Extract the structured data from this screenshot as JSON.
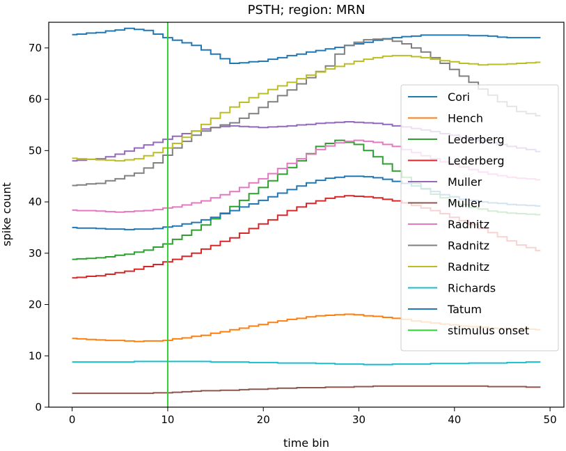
{
  "chart_data": {
    "type": "line",
    "drawstyle": "steps-mid",
    "title": "PSTH; region: MRN",
    "xlabel": "time bin",
    "ylabel": "spike count",
    "xlim": [
      -2.45,
      51.45
    ],
    "ylim": [
      0,
      75
    ],
    "xticks": [
      0,
      10,
      20,
      30,
      40,
      50
    ],
    "yticks": [
      0,
      10,
      20,
      30,
      40,
      50,
      60,
      70
    ],
    "grid": false,
    "legend_position": "center-right",
    "stimulus_onset": 10,
    "series": [
      {
        "name": "Cori",
        "color": "#1f77b4",
        "points": [
          [
            0,
            72.6
          ],
          [
            3,
            73.0
          ],
          [
            6,
            73.8
          ],
          [
            8,
            73.4
          ],
          [
            10,
            72.0
          ],
          [
            13,
            70.5
          ],
          [
            17,
            67.0
          ],
          [
            20,
            67.4
          ],
          [
            23,
            68.5
          ],
          [
            27,
            69.8
          ],
          [
            30,
            70.8
          ],
          [
            33,
            71.8
          ],
          [
            37,
            72.5
          ],
          [
            40,
            72.5
          ],
          [
            43,
            72.4
          ],
          [
            46,
            72.0
          ],
          [
            49,
            72.0
          ]
        ]
      },
      {
        "name": "Hench",
        "color": "#ff7f0e",
        "points": [
          [
            0,
            13.4
          ],
          [
            3,
            13.1
          ],
          [
            7,
            12.8
          ],
          [
            10,
            13.0
          ],
          [
            14,
            14.0
          ],
          [
            18,
            15.4
          ],
          [
            22,
            16.8
          ],
          [
            26,
            17.8
          ],
          [
            29,
            18.1
          ],
          [
            33,
            17.5
          ],
          [
            37,
            16.6
          ],
          [
            41,
            15.8
          ],
          [
            45,
            15.3
          ],
          [
            49,
            15.1
          ]
        ]
      },
      {
        "name": "Lederberg",
        "color": "#2ca02c",
        "points": [
          [
            0,
            28.8
          ],
          [
            3,
            29.1
          ],
          [
            6,
            29.8
          ],
          [
            8,
            30.6
          ],
          [
            10,
            31.8
          ],
          [
            12,
            33.5
          ],
          [
            14,
            35.5
          ],
          [
            16,
            37.8
          ],
          [
            18,
            40.3
          ],
          [
            20,
            42.8
          ],
          [
            22,
            45.4
          ],
          [
            24,
            48.0
          ],
          [
            26,
            50.8
          ],
          [
            28,
            52.0
          ],
          [
            30,
            51.2
          ],
          [
            32,
            48.8
          ],
          [
            34,
            46.0
          ],
          [
            36,
            43.6
          ],
          [
            38,
            41.5
          ],
          [
            40,
            40.0
          ],
          [
            42,
            38.9
          ],
          [
            44,
            38.2
          ],
          [
            46,
            37.8
          ],
          [
            49,
            37.5
          ]
        ]
      },
      {
        "name": "Lederberg",
        "color": "#d62728",
        "points": [
          [
            0,
            25.2
          ],
          [
            3,
            25.6
          ],
          [
            6,
            26.5
          ],
          [
            9,
            27.8
          ],
          [
            11,
            28.8
          ],
          [
            13,
            30.0
          ],
          [
            15,
            31.5
          ],
          [
            17,
            33.0
          ],
          [
            19,
            34.8
          ],
          [
            21,
            36.5
          ],
          [
            23,
            38.3
          ],
          [
            25,
            39.7
          ],
          [
            27,
            40.7
          ],
          [
            29,
            41.2
          ],
          [
            31,
            41.0
          ],
          [
            33,
            40.5
          ],
          [
            35,
            39.8
          ],
          [
            37,
            38.8
          ],
          [
            39,
            37.7
          ],
          [
            41,
            36.3
          ],
          [
            43,
            34.8
          ],
          [
            45,
            33.2
          ],
          [
            47,
            31.6
          ],
          [
            49,
            30.5
          ]
        ]
      },
      {
        "name": "Muller",
        "color": "#9467bd",
        "points": [
          [
            0,
            48.0
          ],
          [
            3,
            48.4
          ],
          [
            5,
            49.3
          ],
          [
            7,
            50.5
          ],
          [
            9,
            51.6
          ],
          [
            11,
            52.8
          ],
          [
            13,
            53.8
          ],
          [
            15,
            54.5
          ],
          [
            17,
            54.8
          ],
          [
            20,
            54.5
          ],
          [
            23,
            54.8
          ],
          [
            26,
            55.3
          ],
          [
            29,
            55.6
          ],
          [
            32,
            55.3
          ],
          [
            35,
            54.6
          ],
          [
            38,
            53.7
          ],
          [
            41,
            52.6
          ],
          [
            44,
            51.5
          ],
          [
            47,
            50.5
          ],
          [
            49,
            49.8
          ]
        ]
      },
      {
        "name": "Muller",
        "color": "#8c564b",
        "points": [
          [
            0,
            2.7
          ],
          [
            8,
            2.7
          ],
          [
            10,
            2.8
          ],
          [
            13,
            3.1
          ],
          [
            17,
            3.3
          ],
          [
            21,
            3.6
          ],
          [
            25,
            3.8
          ],
          [
            29,
            3.9
          ],
          [
            33,
            4.1
          ],
          [
            37,
            4.1
          ],
          [
            41,
            4.1
          ],
          [
            45,
            4.0
          ],
          [
            49,
            3.9
          ]
        ]
      },
      {
        "name": "Radnitz",
        "color": "#e377c2",
        "points": [
          [
            0,
            38.4
          ],
          [
            3,
            38.2
          ],
          [
            5,
            38.0
          ],
          [
            8,
            38.3
          ],
          [
            11,
            39.0
          ],
          [
            14,
            40.2
          ],
          [
            17,
            42.0
          ],
          [
            20,
            44.5
          ],
          [
            23,
            47.5
          ],
          [
            26,
            50.2
          ],
          [
            28,
            51.5
          ],
          [
            30,
            52.0
          ],
          [
            32,
            51.6
          ],
          [
            34,
            50.8
          ],
          [
            36,
            49.6
          ],
          [
            38,
            48.4
          ],
          [
            40,
            47.3
          ],
          [
            42,
            46.3
          ],
          [
            44,
            45.4
          ],
          [
            46,
            44.8
          ],
          [
            49,
            44.3
          ]
        ]
      },
      {
        "name": "Radnitz",
        "color": "#7f7f7f",
        "points": [
          [
            0,
            43.2
          ],
          [
            3,
            43.6
          ],
          [
            5,
            44.5
          ],
          [
            7,
            45.6
          ],
          [
            9,
            47.6
          ],
          [
            11,
            50.5
          ],
          [
            13,
            53.0
          ],
          [
            15,
            54.5
          ],
          [
            17,
            55.4
          ],
          [
            19,
            57.2
          ],
          [
            21,
            59.5
          ],
          [
            23,
            61.8
          ],
          [
            25,
            64.2
          ],
          [
            27,
            66.5
          ],
          [
            28,
            68.8
          ],
          [
            29,
            70.5
          ],
          [
            31,
            71.6
          ],
          [
            33,
            71.7
          ],
          [
            35,
            70.8
          ],
          [
            37,
            69.2
          ],
          [
            39,
            67.0
          ],
          [
            41,
            64.5
          ],
          [
            43,
            62.0
          ],
          [
            45,
            59.5
          ],
          [
            47,
            57.6
          ],
          [
            49,
            56.8
          ]
        ]
      },
      {
        "name": "Radnitz",
        "color": "#bcbd22",
        "points": [
          [
            0,
            48.5
          ],
          [
            3,
            48.2
          ],
          [
            5,
            48.0
          ],
          [
            7,
            48.4
          ],
          [
            9,
            49.6
          ],
          [
            11,
            51.4
          ],
          [
            13,
            53.8
          ],
          [
            15,
            56.3
          ],
          [
            17,
            58.5
          ],
          [
            19,
            60.3
          ],
          [
            21,
            61.9
          ],
          [
            23,
            63.3
          ],
          [
            25,
            64.7
          ],
          [
            27,
            65.9
          ],
          [
            29,
            66.9
          ],
          [
            31,
            67.8
          ],
          [
            33,
            68.4
          ],
          [
            35,
            68.5
          ],
          [
            37,
            68.1
          ],
          [
            39,
            67.5
          ],
          [
            41,
            67.0
          ],
          [
            43,
            66.7
          ],
          [
            45,
            66.8
          ],
          [
            47,
            67.0
          ],
          [
            49,
            67.2
          ]
        ]
      },
      {
        "name": "Richards",
        "color": "#17becf",
        "points": [
          [
            0,
            8.8
          ],
          [
            5,
            8.8
          ],
          [
            8,
            8.9
          ],
          [
            12,
            8.9
          ],
          [
            16,
            8.8
          ],
          [
            20,
            8.7
          ],
          [
            24,
            8.6
          ],
          [
            28,
            8.4
          ],
          [
            32,
            8.3
          ],
          [
            36,
            8.4
          ],
          [
            40,
            8.5
          ],
          [
            44,
            8.6
          ],
          [
            49,
            8.8
          ]
        ]
      },
      {
        "name": "Tatum",
        "color": "#1f77b4",
        "points": [
          [
            0,
            35.0
          ],
          [
            3,
            34.8
          ],
          [
            6,
            34.6
          ],
          [
            9,
            34.8
          ],
          [
            11,
            35.3
          ],
          [
            13,
            36.0
          ],
          [
            15,
            37.0
          ],
          [
            17,
            38.3
          ],
          [
            19,
            39.6
          ],
          [
            21,
            41.0
          ],
          [
            23,
            42.4
          ],
          [
            25,
            43.7
          ],
          [
            27,
            44.6
          ],
          [
            29,
            45.0
          ],
          [
            31,
            44.9
          ],
          [
            33,
            44.4
          ],
          [
            35,
            43.6
          ],
          [
            37,
            42.5
          ],
          [
            39,
            41.4
          ],
          [
            41,
            40.5
          ],
          [
            44,
            39.8
          ],
          [
            47,
            39.4
          ],
          [
            49,
            39.2
          ]
        ]
      },
      {
        "name": "stimulus onset",
        "color": "#32cd32",
        "vertical_line_x": 10
      }
    ]
  }
}
